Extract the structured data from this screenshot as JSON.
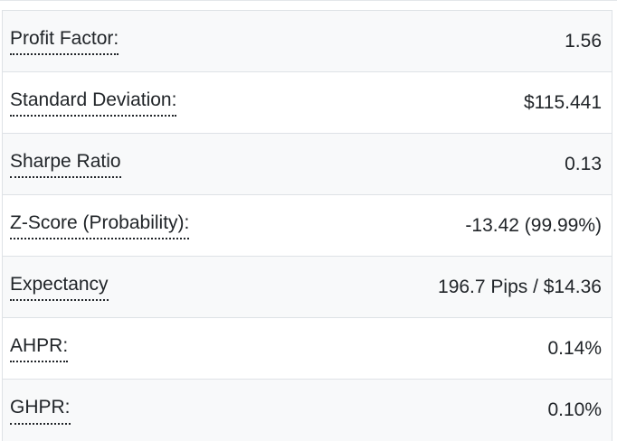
{
  "colors": {
    "bg": "#ffffff",
    "stripe": "#f8f9fa",
    "border": "#dee2e6",
    "hairline": "#e4e7ea",
    "text": "#212529"
  },
  "table": {
    "rows": [
      {
        "label": "Profit Factor:",
        "value": "1.56"
      },
      {
        "label": "Standard Deviation:",
        "value": "$115.441"
      },
      {
        "label": "Sharpe Ratio",
        "value": "0.13"
      },
      {
        "label": "Z-Score (Probability):",
        "value": "-13.42 (99.99%)"
      },
      {
        "label": "Expectancy",
        "value": "196.7 Pips / $14.36"
      },
      {
        "label": "AHPR:",
        "value": "0.14%"
      },
      {
        "label": "GHPR:",
        "value": "0.10%"
      }
    ]
  }
}
